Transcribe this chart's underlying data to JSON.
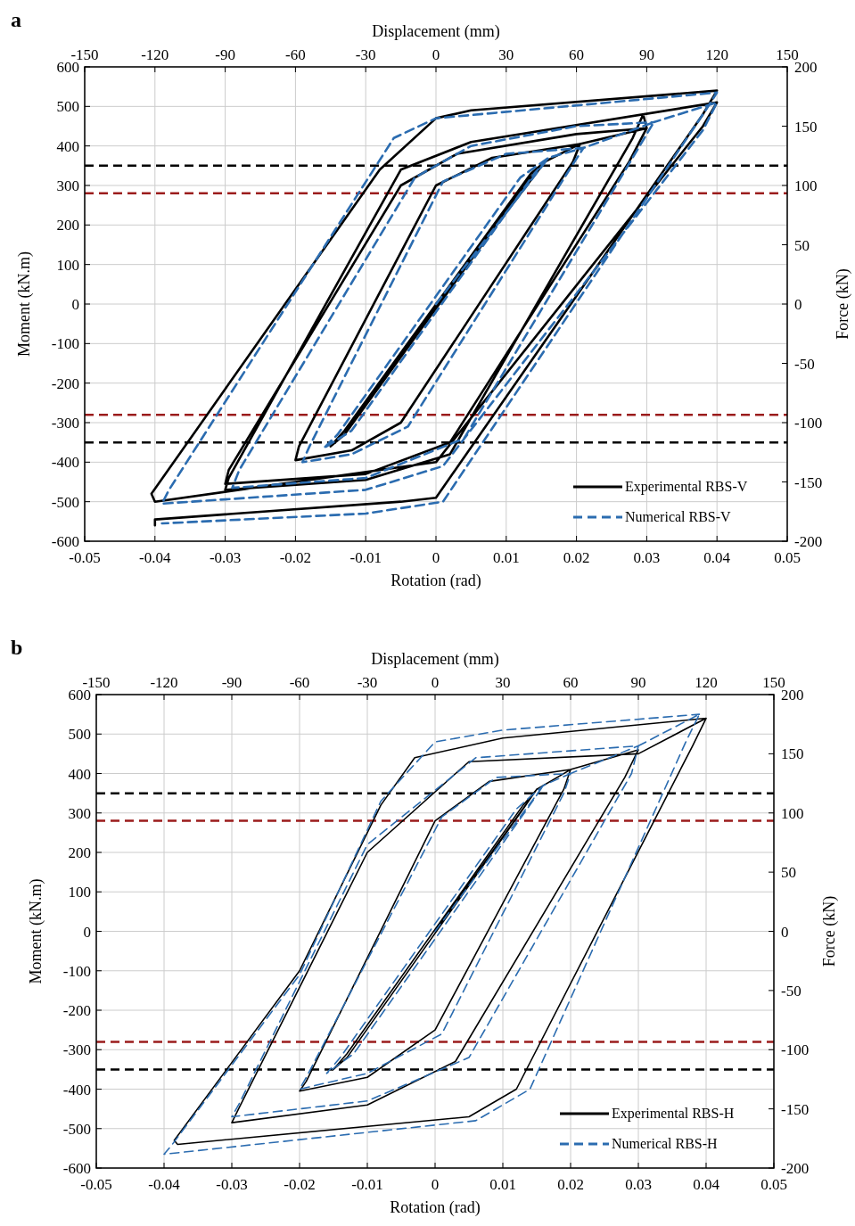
{
  "chart_data": [
    {
      "type": "line",
      "title": "a",
      "xlabel": "Rotation (rad)",
      "ylabel": "Moment (kN.m)",
      "x2label": "Displacement (mm)",
      "y2label": "Force (kN)",
      "xlim": [
        -0.05,
        0.05
      ],
      "xticks": [
        -0.05,
        -0.04,
        -0.03,
        -0.02,
        -0.01,
        0,
        0.01,
        0.02,
        0.03,
        0.04,
        0.05
      ],
      "ylim": [
        -600,
        600
      ],
      "yticks": [
        -600,
        -500,
        -400,
        -300,
        -200,
        -100,
        0,
        100,
        200,
        300,
        400,
        500,
        600
      ],
      "x2lim": [
        -150,
        150
      ],
      "x2ticks": [
        -150,
        -120,
        -90,
        -60,
        -30,
        0,
        30,
        60,
        90,
        120,
        150
      ],
      "y2lim": [
        -200,
        200
      ],
      "y2ticks": [
        -200,
        -150,
        -100,
        -50,
        0,
        50,
        100,
        150,
        200
      ],
      "grid": true,
      "legend": "bottom right",
      "ref_lines": [
        {
          "axis": "y",
          "value": 350,
          "color": "#000000",
          "line_style": "dashed"
        },
        {
          "axis": "y",
          "value": 280,
          "color": "#9b1c1c",
          "line_style": "dashed"
        },
        {
          "axis": "y",
          "value": -280,
          "color": "#9b1c1c",
          "line_style": "dashed"
        },
        {
          "axis": "y",
          "value": -350,
          "color": "#000000",
          "line_style": "dashed"
        }
      ],
      "series": [
        {
          "name": "Experimental RBS-V",
          "color": "#000000",
          "line_style": "solid",
          "x": [
            0,
            0.0155,
            0.0135,
            -0.013,
            -0.015,
            -0.013,
            0.0135,
            0.0155,
            0.0205,
            0.0195,
            -0.005,
            -0.012,
            -0.02,
            -0.0195,
            0,
            0.008,
            0.0205,
            0.03,
            0.0275,
            0.002,
            -0.01,
            -0.03,
            -0.0295,
            -0.005,
            0.003,
            0.02,
            0.03,
            0.0295,
            0.028,
            0.002,
            -0.01,
            -0.03,
            -0.0295,
            -0.005,
            0.005,
            0.04,
            0.038,
            0,
            -0.04,
            -0.0405,
            -0.008,
            0,
            0.005,
            0.04,
            0.038,
            0,
            -0.005,
            -0.04,
            -0.04
          ],
          "values": [
            0,
            360,
            320,
            -330,
            -360,
            -320,
            330,
            360,
            405,
            360,
            -300,
            -370,
            -395,
            -360,
            300,
            370,
            405,
            445,
            360,
            -350,
            -430,
            -455,
            -420,
            300,
            380,
            430,
            445,
            480,
            420,
            -380,
            -445,
            -470,
            -440,
            340,
            410,
            510,
            450,
            -400,
            -500,
            -480,
            340,
            470,
            490,
            540,
            480,
            -490,
            -500,
            -545,
            -560
          ]
        },
        {
          "name": "Numerical RBS-V",
          "color": "#2b6cb0",
          "line_style": "dashed",
          "x": [
            0,
            0.016,
            0.014,
            -0.012,
            -0.016,
            -0.014,
            0.012,
            0.016,
            0.021,
            0.019,
            -0.004,
            -0.012,
            -0.019,
            -0.018,
            0.001,
            0.01,
            0.021,
            0.031,
            0.029,
            0.004,
            -0.01,
            -0.029,
            -0.028,
            -0.003,
            0.005,
            0.02,
            0.031,
            0.04,
            0.038,
            0.001,
            -0.01,
            -0.039,
            -0.038,
            -0.006,
            0,
            0.04,
            0.038,
            0.001,
            -0.01,
            -0.039
          ],
          "values": [
            0,
            370,
            330,
            -320,
            -365,
            -330,
            320,
            370,
            395,
            340,
            -310,
            -380,
            -400,
            -360,
            310,
            380,
            395,
            460,
            400,
            -340,
            -440,
            -465,
            -420,
            320,
            400,
            450,
            460,
            510,
            440,
            -410,
            -470,
            -505,
            -470,
            420,
            470,
            535,
            480,
            -500,
            -530,
            -555
          ]
        }
      ]
    },
    {
      "type": "line",
      "title": "b",
      "xlabel": "Rotation (rad)",
      "ylabel": "Moment (kN.m)",
      "x2label": "Displacement (mm)",
      "y2label": "Force (kN)",
      "xlim": [
        -0.05,
        0.05
      ],
      "xticks": [
        -0.05,
        -0.04,
        -0.03,
        -0.02,
        -0.01,
        0,
        0.01,
        0.02,
        0.03,
        0.04,
        0.05
      ],
      "ylim": [
        -600,
        600
      ],
      "yticks": [
        -600,
        -500,
        -400,
        -300,
        -200,
        -100,
        0,
        100,
        200,
        300,
        400,
        500,
        600
      ],
      "x2lim": [
        -150,
        150
      ],
      "x2ticks": [
        -150,
        -120,
        -90,
        -60,
        -30,
        0,
        30,
        60,
        90,
        120,
        150
      ],
      "y2lim": [
        -200,
        200
      ],
      "y2ticks": [
        -200,
        -150,
        -100,
        -50,
        0,
        50,
        100,
        150,
        200
      ],
      "grid": true,
      "legend": "bottom right",
      "ref_lines": [
        {
          "axis": "y",
          "value": 350,
          "color": "#000000",
          "line_style": "dashed"
        },
        {
          "axis": "y",
          "value": 280,
          "color": "#9b1c1c",
          "line_style": "dashed"
        },
        {
          "axis": "y",
          "value": -280,
          "color": "#9b1c1c",
          "line_style": "dashed"
        },
        {
          "axis": "y",
          "value": -350,
          "color": "#000000",
          "line_style": "dashed"
        }
      ],
      "series": [
        {
          "name": "Experimental RBS-H",
          "color": "#000000",
          "line_style": "solid",
          "x": [
            0,
            0.015,
            0.013,
            -0.013,
            -0.015,
            -0.013,
            0.013,
            0.015,
            0.02,
            0.019,
            0,
            -0.01,
            -0.02,
            -0.019,
            0,
            0.008,
            0.02,
            0.03,
            0.028,
            0.003,
            -0.01,
            -0.03,
            -0.029,
            -0.01,
            0.005,
            0.03,
            0.04,
            0.038,
            0.012,
            0.005,
            -0.038,
            -0.0385,
            -0.02,
            -0.008,
            -0.003,
            0.01,
            0.04
          ],
          "values": [
            0,
            360,
            310,
            -320,
            -350,
            -310,
            320,
            360,
            410,
            360,
            -250,
            -370,
            -405,
            -380,
            280,
            380,
            410,
            460,
            390,
            -330,
            -440,
            -485,
            -450,
            200,
            430,
            450,
            540,
            470,
            -400,
            -470,
            -540,
            -530,
            -100,
            320,
            440,
            490,
            540
          ]
        },
        {
          "name": "Numerical RBS-H",
          "color": "#2b6cb0",
          "line_style": "dashed",
          "x": [
            0,
            0.016,
            0.014,
            -0.012,
            -0.016,
            -0.014,
            0.012,
            0.016,
            0.02,
            0.019,
            0.001,
            -0.01,
            -0.02,
            -0.019,
            0.001,
            0.009,
            0.02,
            0.03,
            0.029,
            0.005,
            -0.01,
            -0.03,
            -0.029,
            -0.01,
            0.006,
            0.03,
            0.039,
            0.037,
            0.014,
            0.006,
            -0.04,
            -0.039,
            -0.02,
            -0.008,
            0,
            0.01,
            0.039
          ],
          "values": [
            0,
            370,
            320,
            -310,
            -360,
            -320,
            310,
            370,
            400,
            350,
            -260,
            -360,
            -400,
            -370,
            290,
            390,
            400,
            470,
            400,
            -320,
            -430,
            -470,
            -440,
            220,
            440,
            470,
            550,
            480,
            -400,
            -480,
            -565,
            -545,
            -110,
            330,
            480,
            510,
            550
          ]
        }
      ]
    }
  ]
}
